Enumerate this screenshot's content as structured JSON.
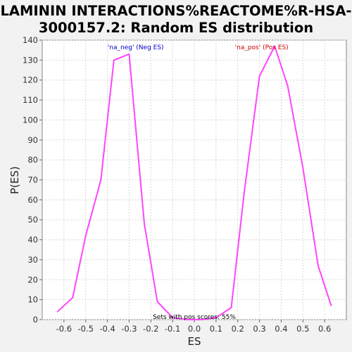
{
  "chart_data": {
    "type": "line",
    "title_lines": [
      "LAMININ INTERACTIONS%REACTOME%R-HSA-",
      "3000157.2: Random ES distribution"
    ],
    "xlabel": "ES",
    "ylabel": "P(ES)",
    "xlim": [
      -0.7,
      0.7
    ],
    "ylim": [
      0,
      140
    ],
    "x_ticks": [
      "-0.6",
      "-0.5",
      "-0.4",
      "-0.3",
      "-0.2",
      "-0.1",
      "0.0",
      "0.1",
      "0.2",
      "0.3",
      "0.4",
      "0.5",
      "0.6"
    ],
    "x_tick_values": [
      -0.6,
      -0.5,
      -0.4,
      -0.3,
      -0.2,
      -0.1,
      0.0,
      0.1,
      0.2,
      0.3,
      0.4,
      0.5,
      0.6
    ],
    "y_ticks": [
      "0",
      "10",
      "20",
      "30",
      "40",
      "50",
      "60",
      "70",
      "80",
      "90",
      "100",
      "110",
      "120",
      "130",
      "140"
    ],
    "y_tick_values": [
      0,
      10,
      20,
      30,
      40,
      50,
      60,
      70,
      80,
      90,
      100,
      110,
      120,
      130,
      140
    ],
    "grid": true,
    "series": [
      {
        "color": "#ff44ff",
        "x": [
          -0.63,
          -0.56,
          -0.5,
          -0.43,
          -0.37,
          -0.3,
          -0.23,
          -0.17,
          -0.1,
          -0.03,
          0.03,
          0.1,
          0.17,
          0.23,
          0.3,
          0.37,
          0.43,
          0.5,
          0.57,
          0.63
        ],
        "y": [
          4,
          11,
          42,
          70,
          130,
          133,
          48,
          9,
          1,
          0,
          0,
          1,
          6,
          64,
          122,
          137,
          117,
          76,
          27,
          7
        ]
      }
    ],
    "legend": [
      {
        "text": "'na_neg' (Neg ES)",
        "color": "#0000cc",
        "x": -0.27
      },
      {
        "text": "'na_pos' (Pos ES)",
        "color": "#cc0000",
        "x": 0.31
      }
    ],
    "annotation": "Sets with pos scores: 55%"
  }
}
